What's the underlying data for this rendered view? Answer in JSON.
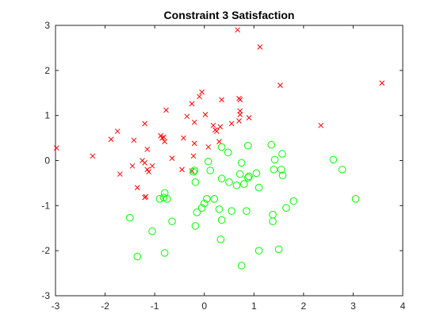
{
  "chart_data": {
    "type": "scatter",
    "title": "Constraint 3 Satisfaction",
    "xlabel": "",
    "ylabel": "",
    "xlim": [
      -3,
      4
    ],
    "ylim": [
      -3,
      3
    ],
    "xticks": [
      -3,
      -2,
      -1,
      0,
      1,
      2,
      3,
      4
    ],
    "yticks": [
      -3,
      -2,
      -1,
      0,
      1,
      2,
      3
    ],
    "grid": false,
    "legend": "none",
    "series": [
      {
        "marker": "x",
        "color": "#ff0000",
        "points": [
          [
            0.67,
            2.9
          ],
          [
            1.12,
            2.52
          ],
          [
            3.58,
            1.72
          ],
          [
            1.53,
            1.67
          ],
          [
            -0.05,
            1.52
          ],
          [
            -0.1,
            1.42
          ],
          [
            0.7,
            1.38
          ],
          [
            0.72,
            1.35
          ],
          [
            -0.25,
            1.26
          ],
          [
            0.35,
            1.35
          ],
          [
            -0.77,
            1.12
          ],
          [
            0.72,
            1.1
          ],
          [
            0.72,
            1.02
          ],
          [
            0.02,
            1.02
          ],
          [
            -0.35,
            0.98
          ],
          [
            0.9,
            0.95
          ],
          [
            0.7,
            0.88
          ],
          [
            -1.2,
            0.82
          ],
          [
            -0.2,
            0.85
          ],
          [
            0.55,
            0.82
          ],
          [
            0.18,
            0.78
          ],
          [
            0.32,
            0.75
          ],
          [
            0.22,
            0.68
          ],
          [
            0.25,
            0.65
          ],
          [
            -1.75,
            0.65
          ],
          [
            2.35,
            0.78
          ],
          [
            -0.88,
            0.55
          ],
          [
            -0.82,
            0.52
          ],
          [
            -0.85,
            0.5
          ],
          [
            -0.42,
            0.5
          ],
          [
            0.3,
            0.42
          ],
          [
            -1.88,
            0.47
          ],
          [
            -1.42,
            0.45
          ],
          [
            -0.8,
            0.42
          ],
          [
            -0.2,
            0.38
          ],
          [
            0.08,
            0.3
          ],
          [
            -2.98,
            0.28
          ],
          [
            -1.15,
            0.25
          ],
          [
            -0.65,
            0.05
          ],
          [
            -0.22,
            0.1
          ],
          [
            -2.25,
            0.1
          ],
          [
            -1.25,
            0.0
          ],
          [
            -1.2,
            -0.05
          ],
          [
            -1.45,
            -0.12
          ],
          [
            -1.05,
            -0.12
          ],
          [
            -1.15,
            -0.2
          ],
          [
            -0.45,
            -0.2
          ],
          [
            -1.7,
            -0.3
          ],
          [
            -1.12,
            -0.25
          ],
          [
            -0.25,
            -0.23
          ],
          [
            -1.35,
            -0.6
          ],
          [
            -1.2,
            -0.82
          ],
          [
            -1.18,
            -0.8
          ]
        ]
      },
      {
        "marker": "o",
        "color": "#00ff00",
        "points": [
          [
            0.35,
            0.3
          ],
          [
            0.88,
            0.33
          ],
          [
            1.35,
            0.35
          ],
          [
            0.48,
            0.18
          ],
          [
            1.57,
            0.15
          ],
          [
            2.6,
            0.02
          ],
          [
            1.42,
            0.02
          ],
          [
            0.08,
            -0.02
          ],
          [
            0.75,
            -0.05
          ],
          [
            2.78,
            -0.2
          ],
          [
            1.4,
            -0.2
          ],
          [
            1.55,
            -0.2
          ],
          [
            -0.2,
            -0.22
          ],
          [
            0.12,
            -0.22
          ],
          [
            1.05,
            -0.28
          ],
          [
            0.72,
            -0.3
          ],
          [
            -0.22,
            -0.25
          ],
          [
            1.58,
            -0.33
          ],
          [
            0.9,
            -0.35
          ],
          [
            0.88,
            -0.38
          ],
          [
            0.35,
            -0.4
          ],
          [
            0.5,
            -0.48
          ],
          [
            -0.18,
            -0.48
          ],
          [
            0.65,
            -0.55
          ],
          [
            0.8,
            -0.52
          ],
          [
            1.1,
            -0.6
          ],
          [
            -0.8,
            -0.72
          ],
          [
            -0.82,
            -0.82
          ],
          [
            -0.9,
            -0.85
          ],
          [
            -0.75,
            -0.85
          ],
          [
            0.05,
            -0.85
          ],
          [
            0.2,
            -0.85
          ],
          [
            3.05,
            -0.85
          ],
          [
            1.8,
            -0.9
          ],
          [
            0.0,
            -0.95
          ],
          [
            1.65,
            -1.05
          ],
          [
            -0.05,
            -1.05
          ],
          [
            0.3,
            -1.08
          ],
          [
            0.55,
            -1.12
          ],
          [
            0.85,
            -1.12
          ],
          [
            -0.15,
            -1.15
          ],
          [
            1.38,
            -1.2
          ],
          [
            -1.5,
            -1.27
          ],
          [
            0.35,
            -1.32
          ],
          [
            1.38,
            -1.35
          ],
          [
            -0.65,
            -1.35
          ],
          [
            -0.18,
            -1.45
          ],
          [
            -1.05,
            -1.57
          ],
          [
            0.33,
            -1.75
          ],
          [
            1.5,
            -1.97
          ],
          [
            1.1,
            -2.0
          ],
          [
            -0.8,
            -2.05
          ],
          [
            -1.35,
            -2.13
          ],
          [
            0.75,
            -2.33
          ]
        ]
      }
    ]
  }
}
